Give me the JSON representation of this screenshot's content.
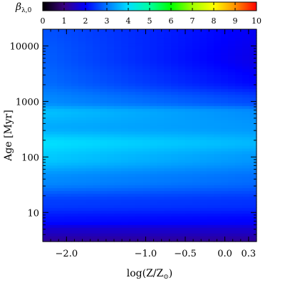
{
  "chart_data": {
    "type": "heatmap",
    "x_axis": {
      "label": "log(Z/Z",
      "label_sub": "⊙",
      "label_tail": ")",
      "range": [
        -2.3,
        0.4
      ],
      "ticks": [
        {
          "value": -2.0,
          "label": "−2.0"
        },
        {
          "value": -1.0,
          "label": "−1.0"
        },
        {
          "value": -0.5,
          "label": "−0.5"
        },
        {
          "value": 0.0,
          "label": "0.0"
        },
        {
          "value": 0.3,
          "label": "0.3"
        }
      ]
    },
    "y_axis": {
      "label": "Age [Myr]",
      "scale": "log",
      "range": [
        3,
        20000
      ],
      "ticks": [
        {
          "value": 10,
          "label": "10"
        },
        {
          "value": 100,
          "label": "100"
        },
        {
          "value": 1000,
          "label": "1000"
        },
        {
          "value": 10000,
          "label": "10000"
        }
      ]
    },
    "colorbar": {
      "title": "β",
      "title_sub": "λ,0",
      "range": [
        0,
        10
      ],
      "ticks": [
        "0",
        "1",
        "2",
        "3",
        "4",
        "5",
        "6",
        "7",
        "8",
        "9",
        "10"
      ],
      "colormap": [
        "#000000",
        "#3a0080",
        "#0000ff",
        "#0078ff",
        "#00e0ff",
        "#00ffa0",
        "#00ff00",
        "#a0ff00",
        "#ffff00",
        "#ff9000",
        "#ff0000"
      ]
    },
    "colormap_domain": [
      0,
      10
    ],
    "color_legend_note": "",
    "grid": false,
    "values_description_rows": [
      {
        "age": 3,
        "beta_by_logz": [
          [
            -2.3,
            1.2
          ],
          [
            0.4,
            1.2
          ]
        ]
      },
      {
        "age": 5,
        "beta_by_logz": [
          [
            -2.3,
            1.6
          ],
          [
            0.4,
            1.6
          ]
        ]
      },
      {
        "age": 7,
        "beta_by_logz": [
          [
            -2.3,
            2.1
          ],
          [
            0.4,
            2.0
          ]
        ]
      },
      {
        "age": 15,
        "beta_by_logz": [
          [
            -2.3,
            2.5
          ],
          [
            0.4,
            2.4
          ]
        ]
      },
      {
        "age": 40,
        "beta_by_logz": [
          [
            -2.3,
            3.2
          ],
          [
            0.4,
            2.9
          ]
        ]
      },
      {
        "age": 100,
        "beta_by_logz": [
          [
            -2.3,
            3.8
          ],
          [
            0.4,
            3.3
          ]
        ]
      },
      {
        "age": 180,
        "beta_by_logz": [
          [
            -2.3,
            4.0
          ],
          [
            0.4,
            3.6
          ]
        ]
      },
      {
        "age": 350,
        "beta_by_logz": [
          [
            -2.3,
            3.5
          ],
          [
            0.4,
            3.3
          ]
        ]
      },
      {
        "age": 650,
        "beta_by_logz": [
          [
            -2.3,
            3.7
          ],
          [
            0.4,
            3.2
          ]
        ]
      },
      {
        "age": 1000,
        "beta_by_logz": [
          [
            -2.3,
            3.2
          ],
          [
            0.4,
            2.6
          ]
        ]
      },
      {
        "age": 2500,
        "beta_by_logz": [
          [
            -2.3,
            2.9
          ],
          [
            0.4,
            2.0
          ]
        ]
      },
      {
        "age": 6000,
        "beta_by_logz": [
          [
            -2.3,
            2.8
          ],
          [
            0.4,
            1.8
          ]
        ]
      },
      {
        "age": 20000,
        "beta_by_logz": [
          [
            -2.3,
            2.7
          ],
          [
            0.4,
            1.9
          ]
        ]
      }
    ]
  }
}
